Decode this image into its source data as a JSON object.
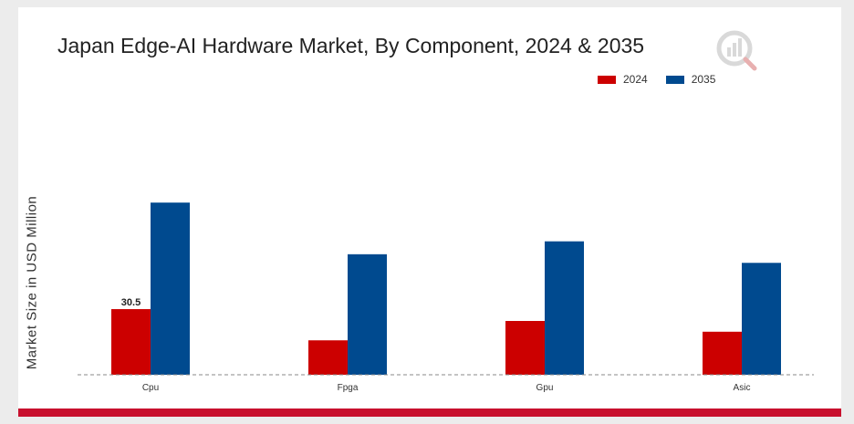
{
  "chart_data": {
    "type": "bar",
    "title": "Japan Edge-AI Hardware Market, By Component, 2024 & 2035",
    "xlabel": "",
    "ylabel": "Market Size in USD Million",
    "categories": [
      "Cpu",
      "Fpga",
      "Gpu",
      "Asic"
    ],
    "series": [
      {
        "name": "2024",
        "color": "#cc0000",
        "values": [
          30.5,
          16.0,
          25.0,
          20.0
        ]
      },
      {
        "name": "2035",
        "color": "#004a8f",
        "values": [
          80.0,
          56.0,
          62.0,
          52.0
        ]
      }
    ],
    "data_labels": [
      {
        "series": 0,
        "index": 0,
        "text": "30.5"
      }
    ],
    "ylim": [
      0,
      100
    ],
    "grid": false,
    "legend_position": "top-right"
  }
}
